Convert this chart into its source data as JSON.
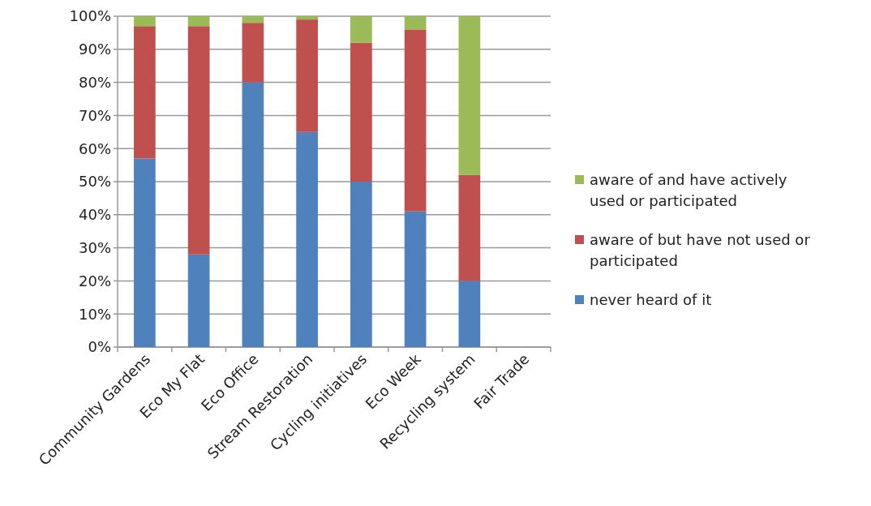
{
  "chart_data": {
    "type": "bar",
    "stacked": true,
    "categories": [
      "Community Gardens",
      "Eco My Flat",
      "Eco Office",
      "Stream Restoration",
      "Cycling initiatives",
      "Eco Week",
      "Recycling system",
      "Fair Trade"
    ],
    "series": [
      {
        "name": "never heard of it",
        "color": "#4f81bd",
        "values": [
          57,
          28,
          80,
          65,
          50,
          41,
          20,
          0
        ]
      },
      {
        "name": "aware of but have not used or participated",
        "color": "#c0504d",
        "values": [
          40,
          69,
          18,
          34,
          42,
          55,
          32,
          0
        ]
      },
      {
        "name": "aware of and have actively used or participated",
        "color": "#9bbb59",
        "values": [
          3,
          3,
          2,
          1,
          8,
          4,
          48,
          0
        ]
      }
    ],
    "ylim": [
      0,
      100
    ],
    "yticks": [
      {
        "value": 0,
        "label": "0%"
      },
      {
        "value": 10,
        "label": "10%"
      },
      {
        "value": 20,
        "label": "20%"
      },
      {
        "value": 30,
        "label": "30%"
      },
      {
        "value": 40,
        "label": "40%"
      },
      {
        "value": 50,
        "label": "50%"
      },
      {
        "value": 60,
        "label": "60%"
      },
      {
        "value": 70,
        "label": "70%"
      },
      {
        "value": 80,
        "label": "80%"
      },
      {
        "value": 90,
        "label": "90%"
      },
      {
        "value": 100,
        "label": "100%"
      }
    ],
    "grid": "y",
    "legend": "right"
  }
}
